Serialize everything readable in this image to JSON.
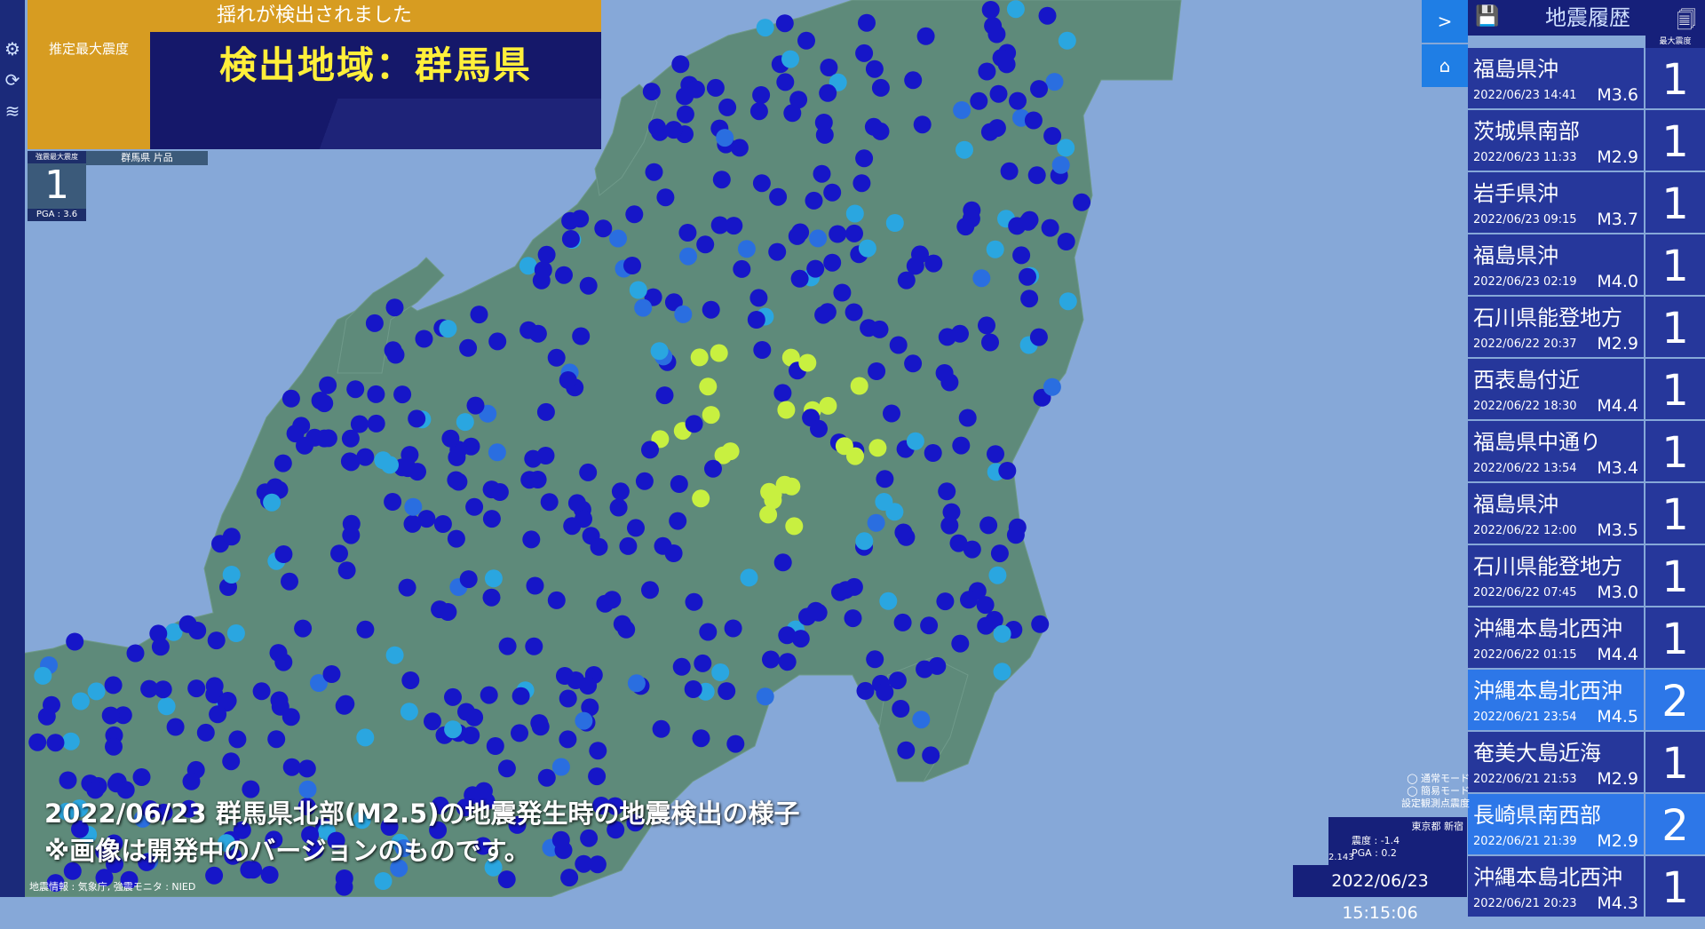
{
  "alert": {
    "banner": "揺れが検出されました",
    "max_intensity_label": "推定最大震度",
    "region_text": "検出地域：群馬県"
  },
  "station": {
    "header": "強震最大震度",
    "intensity": "1",
    "pga": "PGA : 3.6",
    "name": "群馬県 片品"
  },
  "toolbar": {
    "settings_icon": "gear-icon",
    "refresh_icon": "refresh-icon",
    "quake_icon": "wave-icon"
  },
  "nav": {
    "expand_label": ">",
    "home_icon": "home-icon"
  },
  "history": {
    "title": "地震履歴",
    "max_col_label": "最大震度",
    "items": [
      {
        "place": "福島県沖",
        "time": "2022/06/23 14:41",
        "mag": "M3.6",
        "intensity": "1",
        "highlight": false
      },
      {
        "place": "茨城県南部",
        "time": "2022/06/23 11:33",
        "mag": "M2.9",
        "intensity": "1",
        "highlight": false
      },
      {
        "place": "岩手県沖",
        "time": "2022/06/23 09:15",
        "mag": "M3.7",
        "intensity": "1",
        "highlight": false
      },
      {
        "place": "福島県沖",
        "time": "2022/06/23 02:19",
        "mag": "M4.0",
        "intensity": "1",
        "highlight": false
      },
      {
        "place": "石川県能登地方",
        "time": "2022/06/22 20:37",
        "mag": "M2.9",
        "intensity": "1",
        "highlight": false
      },
      {
        "place": "西表島付近",
        "time": "2022/06/22 18:30",
        "mag": "M4.4",
        "intensity": "1",
        "highlight": false
      },
      {
        "place": "福島県中通り",
        "time": "2022/06/22 13:54",
        "mag": "M3.4",
        "intensity": "1",
        "highlight": false
      },
      {
        "place": "福島県沖",
        "time": "2022/06/22 12:00",
        "mag": "M3.5",
        "intensity": "1",
        "highlight": false
      },
      {
        "place": "石川県能登地方",
        "time": "2022/06/22 07:45",
        "mag": "M3.0",
        "intensity": "1",
        "highlight": false
      },
      {
        "place": "沖縄本島北西沖",
        "time": "2022/06/22 01:15",
        "mag": "M4.4",
        "intensity": "1",
        "highlight": false
      },
      {
        "place": "沖縄本島北西沖",
        "time": "2022/06/21 23:54",
        "mag": "M4.5",
        "intensity": "2",
        "highlight": true
      },
      {
        "place": "奄美大島近海",
        "time": "2022/06/21 21:53",
        "mag": "M2.9",
        "intensity": "1",
        "highlight": false
      },
      {
        "place": "長崎県南西部",
        "time": "2022/06/21 21:39",
        "mag": "M2.9",
        "intensity": "2",
        "highlight": true
      },
      {
        "place": "沖縄本島北西沖",
        "time": "2022/06/21 20:23",
        "mag": "M4.3",
        "intensity": "1",
        "highlight": false
      }
    ]
  },
  "legend": {
    "normal_mode": "通常モード",
    "simple_mode": "簡易モード",
    "set_station": "設定観測点震度"
  },
  "observation": {
    "location": "東京都 新宿",
    "shindo": "震度 : -1.4",
    "pga": "PGA : 0.2",
    "version": "2.143"
  },
  "clock": "2022/06/23 15:15:06",
  "caption": {
    "line1": "2022/06/23 群馬県北部(M2.5)の地震発生時の地震検出の様子",
    "line2": "※画像は開発中のバージョンのものです。"
  },
  "credit": "地震情報 : 気象庁, 強震モニタ : NIED",
  "colors": {
    "sea": "#86a8d8",
    "land": "#5e8a7a",
    "station_low": "#1616c8",
    "station_mid": "#2aa6e0",
    "station_high": "#c8f040",
    "panel": "#16207a",
    "accent": "#d79c21"
  }
}
